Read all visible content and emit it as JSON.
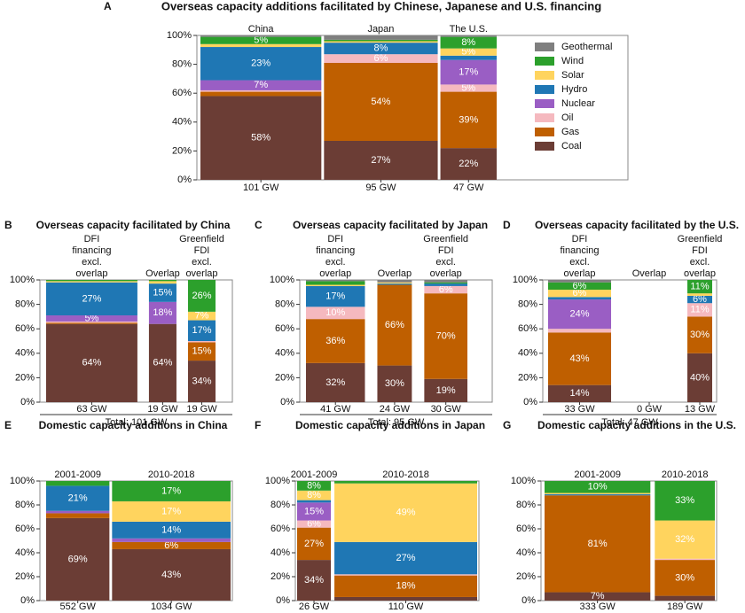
{
  "chart_data": [
    {
      "type": "marimekko",
      "panel": "A",
      "title": "Overseas capacity additions facilitated by Chinese, Japanese and U.S. financing",
      "legend": true,
      "categories": [
        "China",
        "Japan",
        "The U.S."
      ],
      "totals": {
        "values": [
          101,
          95,
          47
        ],
        "value_labels": [
          "101 GW",
          "95 GW",
          "47 GW"
        ]
      },
      "ylim": [
        0,
        100
      ],
      "yticks": [
        {
          "value": 0,
          "label": "0%"
        },
        {
          "value": 20,
          "label": "20%"
        },
        {
          "value": 40,
          "label": "40%"
        },
        {
          "value": 60,
          "label": "60%"
        },
        {
          "value": 80,
          "label": "80%"
        },
        {
          "value": 100,
          "label": "100%"
        }
      ],
      "series": [
        {
          "name": "Coal",
          "color": "#6b3d35",
          "values": [
            58,
            27,
            22
          ],
          "value_labels": [
            "58%",
            "27%",
            "22%"
          ]
        },
        {
          "name": "Gas",
          "color": "#bf5f00",
          "values": [
            3,
            54,
            39
          ],
          "value_labels": [
            null,
            "54%",
            "39%"
          ]
        },
        {
          "name": "Oil",
          "color": "#f5b9bf",
          "values": [
            1,
            6,
            5
          ],
          "value_labels": [
            null,
            "6%",
            "5%"
          ]
        },
        {
          "name": "Nuclear",
          "color": "#9a5ec4",
          "values": [
            7,
            0,
            17
          ],
          "value_labels": [
            "7%",
            null,
            "17%"
          ]
        },
        {
          "name": "Hydro",
          "color": "#1f77b4",
          "values": [
            23,
            8,
            3
          ],
          "value_labels": [
            "23%",
            "8%",
            null
          ]
        },
        {
          "name": "Solar",
          "color": "#ffd45e",
          "values": [
            2,
            1,
            5
          ],
          "value_labels": [
            null,
            null,
            "5%"
          ]
        },
        {
          "name": "Wind",
          "color": "#2ca02c",
          "values": [
            5,
            1,
            8
          ],
          "value_labels": [
            "5%",
            null,
            "8%"
          ]
        },
        {
          "name": "Geothermal",
          "color": "#7f7f7f",
          "values": [
            1,
            3,
            1
          ]
        }
      ]
    },
    {
      "type": "marimekko",
      "panel": "B",
      "title": "Overseas capacity facilitated by China",
      "total_label": "Total: 101 GW",
      "categories": [
        [
          "DFI",
          "financing",
          "excl.",
          "overlap"
        ],
        [
          "Overlap"
        ],
        [
          "Greenfield",
          "FDI",
          "excl.",
          "overlap"
        ]
      ],
      "totals": {
        "values": [
          63,
          19,
          19
        ],
        "value_labels": [
          "63 GW",
          "19 GW",
          "19 GW"
        ]
      },
      "ylim": [
        0,
        100
      ],
      "yticks": [
        {
          "value": 0,
          "label": "0%"
        },
        {
          "value": 20,
          "label": "20%"
        },
        {
          "value": 40,
          "label": "40%"
        },
        {
          "value": 60,
          "label": "60%"
        },
        {
          "value": 80,
          "label": "80%"
        },
        {
          "value": 100,
          "label": "100%"
        }
      ],
      "series": [
        {
          "color": "#6b3d35",
          "values": [
            64,
            64,
            34
          ],
          "value_labels": [
            "64%",
            "64%",
            "34%"
          ]
        },
        {
          "color": "#bf5f00",
          "values": [
            1,
            0,
            15
          ],
          "value_labels": [
            null,
            null,
            "15%"
          ]
        },
        {
          "color": "#f5b9bf",
          "values": [
            1,
            0,
            1
          ]
        },
        {
          "color": "#9a5ec4",
          "values": [
            5,
            18,
            0
          ],
          "value_labels": [
            "5%",
            "18%",
            null
          ]
        },
        {
          "color": "#1f77b4",
          "values": [
            27,
            15,
            17
          ],
          "value_labels": [
            "27%",
            "15%",
            "17%"
          ]
        },
        {
          "color": "#ffd45e",
          "values": [
            1,
            2,
            7
          ],
          "value_labels": [
            null,
            null,
            "7%"
          ]
        },
        {
          "color": "#2ca02c",
          "values": [
            1,
            1,
            26
          ],
          "value_labels": [
            null,
            null,
            "26%"
          ]
        },
        {
          "color": "#7f7f7f",
          "values": [
            0,
            0,
            0
          ]
        }
      ]
    },
    {
      "type": "marimekko",
      "panel": "C",
      "title": "Overseas capacity facilitated by Japan",
      "total_label": "Total: 95 GW",
      "categories": [
        [
          "DFI",
          "financing",
          "excl.",
          "overlap"
        ],
        [
          "Overlap"
        ],
        [
          "Greenfield",
          "FDI",
          "excl.",
          "overlap"
        ]
      ],
      "totals": {
        "values": [
          41,
          24,
          30
        ],
        "value_labels": [
          "41 GW",
          "24 GW",
          "30 GW"
        ]
      },
      "ylim": [
        0,
        100
      ],
      "yticks": [
        {
          "value": 0,
          "label": "0%"
        },
        {
          "value": 20,
          "label": "20%"
        },
        {
          "value": 40,
          "label": "40%"
        },
        {
          "value": 60,
          "label": "60%"
        },
        {
          "value": 80,
          "label": "80%"
        },
        {
          "value": 100,
          "label": "100%"
        }
      ],
      "series": [
        {
          "color": "#6b3d35",
          "values": [
            32,
            30,
            19
          ],
          "value_labels": [
            "32%",
            "30%",
            "19%"
          ]
        },
        {
          "color": "#bf5f00",
          "values": [
            36,
            66,
            70
          ],
          "value_labels": [
            "36%",
            "66%",
            "70%"
          ]
        },
        {
          "color": "#f5b9bf",
          "values": [
            10,
            0,
            6
          ],
          "value_labels": [
            "10%",
            null,
            "6%"
          ]
        },
        {
          "color": "#9a5ec4",
          "values": [
            0,
            0,
            0
          ]
        },
        {
          "color": "#1f77b4",
          "values": [
            17,
            1,
            2
          ],
          "value_labels": [
            "17%",
            null,
            null
          ]
        },
        {
          "color": "#ffd45e",
          "values": [
            1,
            1,
            0
          ]
        },
        {
          "color": "#2ca02c",
          "values": [
            3,
            0,
            1
          ]
        },
        {
          "color": "#7f7f7f",
          "values": [
            1,
            2,
            2
          ]
        }
      ]
    },
    {
      "type": "marimekko",
      "panel": "D",
      "title": "Overseas capacity facilitated by the U.S.",
      "total_label": "Total: 47 GW",
      "categories": [
        [
          "DFI",
          "financing",
          "excl.",
          "overlap"
        ],
        [
          "Overlap"
        ],
        [
          "Greenfield",
          "FDI",
          "excl.",
          "overlap"
        ]
      ],
      "totals": {
        "values": [
          33,
          0,
          13
        ],
        "value_labels": [
          "33 GW",
          "0 GW",
          "13 GW"
        ]
      },
      "ylim": [
        0,
        100
      ],
      "yticks": [
        {
          "value": 0,
          "label": "0%"
        },
        {
          "value": 20,
          "label": "20%"
        },
        {
          "value": 40,
          "label": "40%"
        },
        {
          "value": 60,
          "label": "60%"
        },
        {
          "value": 80,
          "label": "80%"
        },
        {
          "value": 100,
          "label": "100%"
        }
      ],
      "series": [
        {
          "color": "#6b3d35",
          "values": [
            14,
            0,
            40
          ],
          "value_labels": [
            "14%",
            null,
            "40%"
          ]
        },
        {
          "color": "#bf5f00",
          "values": [
            43,
            0,
            30
          ],
          "value_labels": [
            "43%",
            null,
            "30%"
          ]
        },
        {
          "color": "#f5b9bf",
          "values": [
            3,
            0,
            11
          ],
          "value_labels": [
            null,
            null,
            "11%"
          ]
        },
        {
          "color": "#9a5ec4",
          "values": [
            24,
            0,
            0
          ],
          "value_labels": [
            "24%",
            null,
            null
          ]
        },
        {
          "color": "#1f77b4",
          "values": [
            2,
            0,
            6
          ],
          "value_labels": [
            null,
            null,
            "6%"
          ]
        },
        {
          "color": "#ffd45e",
          "values": [
            6,
            0,
            2
          ],
          "value_labels": [
            "6%",
            null,
            null
          ]
        },
        {
          "color": "#2ca02c",
          "values": [
            6,
            0,
            11
          ],
          "value_labels": [
            "6%",
            null,
            "11%"
          ]
        },
        {
          "color": "#7f7f7f",
          "values": [
            2,
            0,
            0
          ]
        }
      ]
    },
    {
      "type": "marimekko",
      "panel": "E",
      "title": "Domestic capacity additions in China",
      "categories": [
        "2001-2009",
        "2010-2018"
      ],
      "totals": {
        "values": [
          552,
          1034
        ],
        "value_labels": [
          "552 GW",
          "1034 GW"
        ]
      },
      "ylim": [
        0,
        100
      ],
      "yticks": [
        {
          "value": 0,
          "label": "0%"
        },
        {
          "value": 20,
          "label": "20%"
        },
        {
          "value": 40,
          "label": "40%"
        },
        {
          "value": 60,
          "label": "60%"
        },
        {
          "value": 80,
          "label": "80%"
        },
        {
          "value": 100,
          "label": "100%"
        }
      ],
      "series": [
        {
          "color": "#6b3d35",
          "values": [
            69,
            43
          ],
          "value_labels": [
            "69%",
            "43%"
          ]
        },
        {
          "color": "#bf5f00",
          "values": [
            4,
            6
          ],
          "value_labels": [
            null,
            "6%"
          ]
        },
        {
          "color": "#f5b9bf",
          "values": [
            0,
            0
          ]
        },
        {
          "color": "#9a5ec4",
          "values": [
            2,
            3
          ]
        },
        {
          "color": "#1f77b4",
          "values": [
            21,
            14
          ],
          "value_labels": [
            "21%",
            "14%"
          ]
        },
        {
          "color": "#ffd45e",
          "values": [
            0,
            17
          ],
          "value_labels": [
            null,
            "17%"
          ]
        },
        {
          "color": "#2ca02c",
          "values": [
            4,
            17
          ],
          "value_labels": [
            null,
            "17%"
          ]
        },
        {
          "color": "#7f7f7f",
          "values": [
            0,
            0
          ]
        }
      ]
    },
    {
      "type": "marimekko",
      "panel": "F",
      "title": "Domestic capacity additions in Japan",
      "categories": [
        "2001-2009",
        "2010-2018"
      ],
      "totals": {
        "values": [
          26,
          110
        ],
        "value_labels": [
          "26 GW",
          "110 GW"
        ]
      },
      "ylim": [
        0,
        100
      ],
      "yticks": [
        {
          "value": 0,
          "label": "0%"
        },
        {
          "value": 20,
          "label": "20%"
        },
        {
          "value": 40,
          "label": "40%"
        },
        {
          "value": 60,
          "label": "60%"
        },
        {
          "value": 80,
          "label": "80%"
        },
        {
          "value": 100,
          "label": "100%"
        }
      ],
      "series": [
        {
          "color": "#6b3d35",
          "values": [
            34,
            3
          ],
          "value_labels": [
            "34%",
            null
          ]
        },
        {
          "color": "#bf5f00",
          "values": [
            27,
            18
          ],
          "value_labels": [
            "27%",
            "18%"
          ]
        },
        {
          "color": "#f5b9bf",
          "values": [
            6,
            1
          ],
          "value_labels": [
            "6%",
            null
          ]
        },
        {
          "color": "#9a5ec4",
          "values": [
            15,
            0
          ],
          "value_labels": [
            "15%",
            null
          ]
        },
        {
          "color": "#1f77b4",
          "values": [
            2,
            27
          ],
          "value_labels": [
            null,
            "27%"
          ]
        },
        {
          "color": "#ffd45e",
          "values": [
            8,
            49
          ],
          "value_labels": [
            "8%",
            "49%"
          ]
        },
        {
          "color": "#2ca02c",
          "values": [
            8,
            2
          ],
          "value_labels": [
            "8%",
            null
          ]
        },
        {
          "color": "#7f7f7f",
          "values": [
            0,
            0
          ]
        }
      ]
    },
    {
      "type": "marimekko",
      "panel": "G",
      "title": "Domestic capacity additions in the U.S.",
      "categories": [
        "2001-2009",
        "2010-2018"
      ],
      "totals": {
        "values": [
          333,
          189
        ],
        "value_labels": [
          "333 GW",
          "189 GW"
        ]
      },
      "ylim": [
        0,
        100
      ],
      "yticks": [
        {
          "value": 0,
          "label": "0%"
        },
        {
          "value": 20,
          "label": "20%"
        },
        {
          "value": 40,
          "label": "40%"
        },
        {
          "value": 60,
          "label": "60%"
        },
        {
          "value": 80,
          "label": "80%"
        },
        {
          "value": 100,
          "label": "100%"
        }
      ],
      "series": [
        {
          "color": "#6b3d35",
          "values": [
            7,
            4
          ],
          "value_labels": [
            "7%",
            null
          ]
        },
        {
          "color": "#bf5f00",
          "values": [
            81,
            30
          ],
          "value_labels": [
            "81%",
            "30%"
          ]
        },
        {
          "color": "#f5b9bf",
          "values": [
            0,
            1
          ]
        },
        {
          "color": "#9a5ec4",
          "values": [
            0,
            0
          ]
        },
        {
          "color": "#1f77b4",
          "values": [
            1,
            0
          ]
        },
        {
          "color": "#ffd45e",
          "values": [
            1,
            32
          ],
          "value_labels": [
            null,
            "32%"
          ]
        },
        {
          "color": "#2ca02c",
          "values": [
            10,
            33
          ],
          "value_labels": [
            "10%",
            "33%"
          ]
        },
        {
          "color": "#7f7f7f",
          "values": [
            0,
            0
          ]
        }
      ]
    }
  ]
}
